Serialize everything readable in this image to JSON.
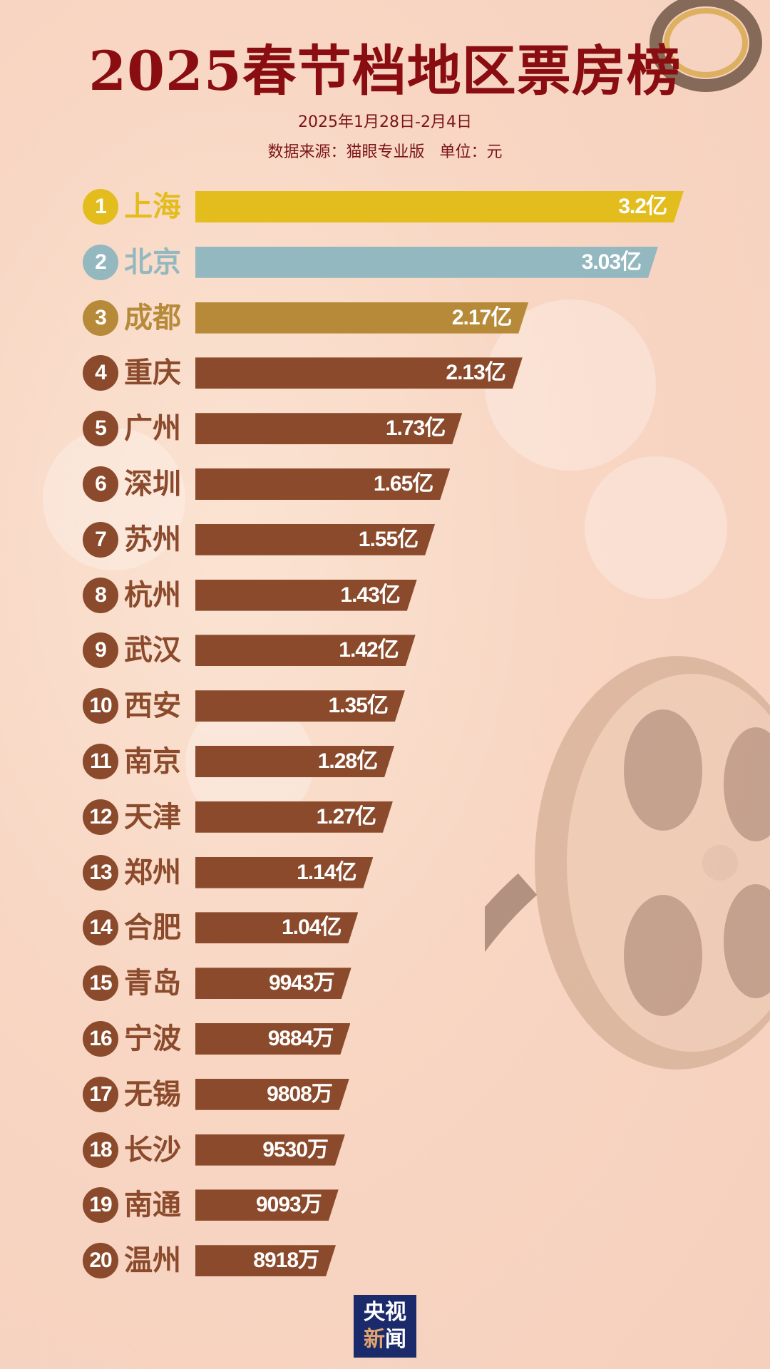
{
  "title": "2025春节档地区票房榜",
  "date_range": "2025年1月28日-2月4日",
  "source_line": "数据来源：猫眼专业版   单位：元",
  "logo": {
    "line1": "央视",
    "line2_a": "新",
    "line2_b": "闻"
  },
  "colors": {
    "gold": "#e3bd1e",
    "silver": "#94b8bf",
    "bronze": "#b78a3a",
    "default": "#8a4a2b",
    "title": "#8a0d12"
  },
  "chart_data": {
    "type": "bar",
    "orientation": "horizontal",
    "unit": "元",
    "categories": [
      "上海",
      "北京",
      "成都",
      "重庆",
      "广州",
      "深圳",
      "苏州",
      "杭州",
      "武汉",
      "西安",
      "南京",
      "天津",
      "郑州",
      "合肥",
      "青岛",
      "宁波",
      "无锡",
      "长沙",
      "南通",
      "温州"
    ],
    "values_yi": [
      3.2,
      3.03,
      2.17,
      2.13,
      1.73,
      1.65,
      1.55,
      1.43,
      1.42,
      1.35,
      1.28,
      1.27,
      1.14,
      1.04,
      0.9943,
      0.9884,
      0.9808,
      0.953,
      0.9093,
      0.8918
    ],
    "labels": [
      "3.2亿",
      "3.03亿",
      "2.17亿",
      "2.13亿",
      "1.73亿",
      "1.65亿",
      "1.55亿",
      "1.43亿",
      "1.42亿",
      "1.35亿",
      "1.28亿",
      "1.27亿",
      "1.14亿",
      "1.04亿",
      "9943万",
      "9884万",
      "9808万",
      "9530万",
      "9093万",
      "8918万"
    ],
    "ranks": [
      "1",
      "2",
      "3",
      "4",
      "5",
      "6",
      "7",
      "8",
      "9",
      "10",
      "11",
      "12",
      "13",
      "14",
      "15",
      "16",
      "17",
      "18",
      "19",
      "20"
    ]
  }
}
